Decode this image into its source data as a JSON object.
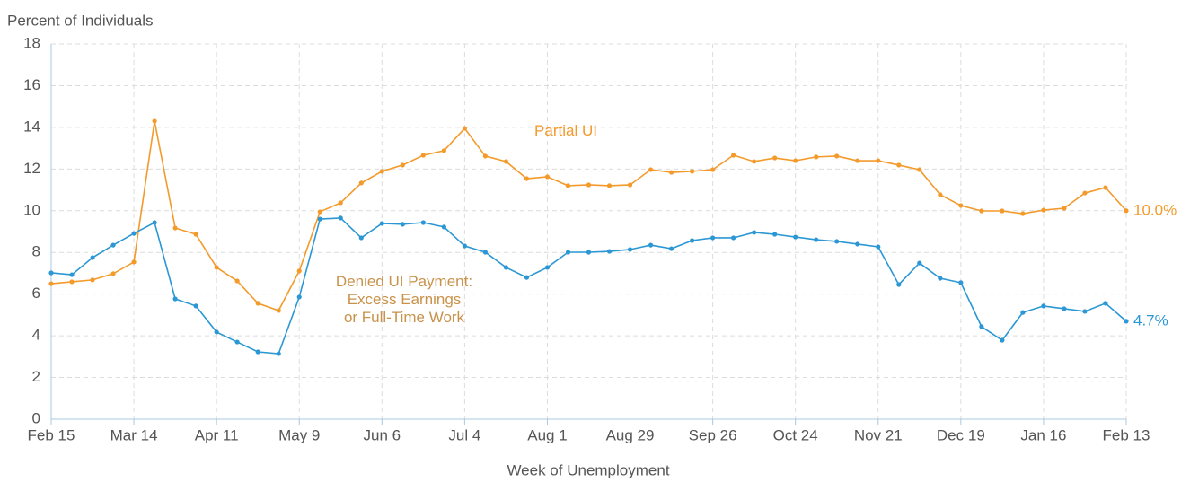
{
  "chart_data": {
    "type": "line",
    "ylabel": "Percent of Individuals",
    "xlabel": "Week of Unemployment",
    "categories": [
      "Feb 15",
      null,
      null,
      null,
      "Mar 14",
      null,
      null,
      null,
      "Apr 11",
      null,
      null,
      null,
      "May 9",
      null,
      null,
      null,
      "Jun 6",
      null,
      null,
      null,
      "Jul 4",
      null,
      null,
      null,
      "Aug 1",
      null,
      null,
      null,
      "Aug 29",
      null,
      null,
      null,
      "Sep 26",
      null,
      null,
      null,
      "Oct 24",
      null,
      null,
      null,
      "Nov 21",
      null,
      null,
      null,
      "Dec 19",
      null,
      null,
      null,
      "Jan 16",
      null,
      null,
      null,
      "Feb 13"
    ],
    "series": [
      {
        "name": "Partial UI",
        "color": "#f39a2b",
        "values": [
          6.5,
          6.59,
          6.68,
          6.98,
          7.54,
          14.3,
          9.17,
          8.87,
          7.28,
          6.63,
          5.56,
          5.21,
          7.11,
          9.95,
          10.38,
          11.33,
          11.89,
          12.19,
          12.66,
          12.88,
          13.95,
          12.62,
          12.36,
          11.54,
          11.63,
          11.2,
          11.24,
          11.2,
          11.24,
          11.97,
          11.84,
          11.89,
          11.97,
          12.66,
          12.36,
          12.53,
          12.4,
          12.58,
          12.62,
          12.4,
          12.4,
          12.19,
          11.97,
          10.77,
          10.25,
          9.99,
          9.99,
          9.86,
          10.03,
          10.12,
          10.85,
          11.11,
          10.0
        ],
        "value_labels": [
          null,
          null,
          null,
          null,
          null,
          null,
          null,
          null,
          null,
          null,
          null,
          null,
          null,
          null,
          null,
          null,
          null,
          null,
          null,
          null,
          null,
          null,
          null,
          null,
          null,
          null,
          null,
          null,
          null,
          null,
          null,
          null,
          null,
          null,
          null,
          null,
          null,
          null,
          null,
          null,
          null,
          null,
          null,
          null,
          null,
          null,
          null,
          null,
          null,
          null,
          null,
          null,
          "10.0%"
        ]
      },
      {
        "name": "Denied UI Payment:\nExcess Earnings\nor Full-Time Work",
        "color": "#2b97d4",
        "values": [
          7.02,
          6.93,
          7.75,
          8.35,
          8.91,
          9.43,
          5.77,
          5.43,
          4.18,
          3.7,
          3.23,
          3.14,
          5.86,
          9.6,
          9.65,
          8.7,
          9.39,
          9.35,
          9.43,
          9.22,
          8.31,
          8.01,
          7.28,
          6.8,
          7.28,
          8.01,
          8.01,
          8.05,
          8.14,
          8.35,
          8.18,
          8.57,
          8.7,
          8.7,
          8.96,
          8.87,
          8.74,
          8.61,
          8.53,
          8.4,
          8.27,
          6.46,
          7.49,
          6.76,
          6.55,
          4.44,
          3.79,
          5.12,
          5.43,
          5.3,
          5.17,
          5.56,
          4.7
        ],
        "value_labels": [
          null,
          null,
          null,
          null,
          null,
          null,
          null,
          null,
          null,
          null,
          null,
          null,
          null,
          null,
          null,
          null,
          null,
          null,
          null,
          null,
          null,
          null,
          null,
          null,
          null,
          null,
          null,
          null,
          null,
          null,
          null,
          null,
          null,
          null,
          null,
          null,
          null,
          null,
          null,
          null,
          null,
          null,
          null,
          null,
          null,
          null,
          null,
          null,
          null,
          null,
          null,
          null,
          "4.7%"
        ]
      }
    ],
    "ylim": [
      0,
      18
    ],
    "yticks": [
      0,
      2,
      4,
      6,
      8,
      10,
      12,
      14,
      16,
      18
    ],
    "grid": true
  }
}
